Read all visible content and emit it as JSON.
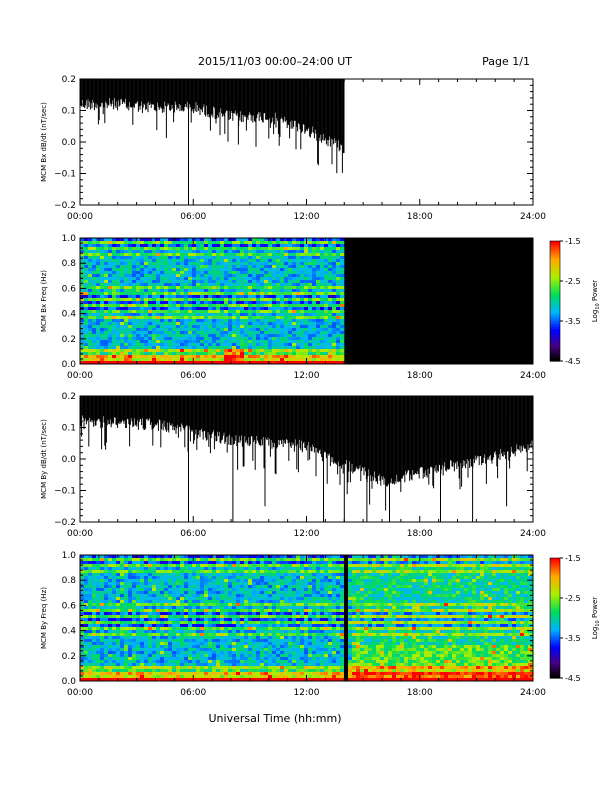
{
  "header": {
    "title": "2015/11/03  00:00–24:00 UT",
    "page": "Page 1/1"
  },
  "footer": {
    "xlabel": "Universal Time (hh:mm)"
  },
  "colorbar": {
    "label_prefix": "Log",
    "label_sub": "10",
    "label_suffix": " Power",
    "ticks": [
      "-1.5",
      "-2.5",
      "-3.5",
      "-4.5"
    ],
    "range": [
      -4.5,
      -1.5
    ]
  },
  "chart_data": [
    {
      "type": "line",
      "id": "bx-dbdt",
      "ylabel": "MCM Bx dB/dt (nT/sec)",
      "x_ticks": [
        "00:00",
        "06:00",
        "12:00",
        "18:00",
        "24:00"
      ],
      "xlim": [
        0,
        24
      ],
      "ylim": [
        -0.2,
        0.2
      ],
      "y_ticks": [
        "0.2",
        "0.1",
        "0.0",
        "−0.1",
        "−0.2"
      ],
      "data_end_hour": 14.0,
      "envelope": [
        {
          "x": 0,
          "top": 0.2,
          "bottom": 0.14
        },
        {
          "x": 2,
          "top": 0.2,
          "bottom": 0.14
        },
        {
          "x": 4,
          "top": 0.2,
          "bottom": 0.13
        },
        {
          "x": 6,
          "top": 0.2,
          "bottom": 0.13
        },
        {
          "x": 8,
          "top": 0.2,
          "bottom": 0.1
        },
        {
          "x": 10,
          "top": 0.2,
          "bottom": 0.1
        },
        {
          "x": 12,
          "top": 0.2,
          "bottom": 0.06
        },
        {
          "x": 14,
          "top": 0.2,
          "bottom": 0.0
        }
      ],
      "spikes": [
        {
          "x": 5.75,
          "y": -0.2
        },
        {
          "x": 7.9,
          "y": 0.07
        },
        {
          "x": 8.4,
          "y": 0.05
        },
        {
          "x": 12.0,
          "y": 0.04
        },
        {
          "x": 13.9,
          "y": 0.0
        }
      ]
    },
    {
      "type": "heatmap",
      "id": "bx-spectrogram",
      "ylabel": "MCM Bx Freq (Hz)",
      "x_ticks": [
        "00:00",
        "06:00",
        "12:00",
        "18:00",
        "24:00"
      ],
      "xlim": [
        0,
        24
      ],
      "ylim": [
        0,
        1.0
      ],
      "y_ticks": [
        "1.0",
        "0.8",
        "0.6",
        "0.4",
        "0.2",
        "0.0"
      ],
      "data_end_hour": 14.0,
      "colorscale": "rainbow",
      "value_range": [
        -4.5,
        -1.5
      ]
    },
    {
      "type": "line",
      "id": "by-dbdt",
      "ylabel": "MCM By dB/dt (nT/sec)",
      "x_ticks": [
        "00:00",
        "06:00",
        "12:00",
        "18:00",
        "24:00"
      ],
      "xlim": [
        0,
        24
      ],
      "ylim": [
        -0.2,
        0.2
      ],
      "y_ticks": [
        "0.2",
        "0.1",
        "0.0",
        "−0.1",
        "−0.2"
      ],
      "data_end_hour": 24.0,
      "envelope": [
        {
          "x": 0,
          "top": 0.2,
          "bottom": 0.14
        },
        {
          "x": 4,
          "top": 0.2,
          "bottom": 0.13
        },
        {
          "x": 8,
          "top": 0.2,
          "bottom": 0.08
        },
        {
          "x": 12,
          "top": 0.2,
          "bottom": 0.06
        },
        {
          "x": 16,
          "top": 0.2,
          "bottom": -0.05
        },
        {
          "x": 20,
          "top": 0.2,
          "bottom": 0.0
        },
        {
          "x": 24,
          "top": 0.2,
          "bottom": 0.06
        }
      ],
      "spikes": [
        {
          "x": 5.75,
          "y": -0.2
        },
        {
          "x": 8.1,
          "y": -0.2
        },
        {
          "x": 9.8,
          "y": -0.15
        },
        {
          "x": 12.9,
          "y": -0.2
        },
        {
          "x": 14.0,
          "y": -0.2
        },
        {
          "x": 15.2,
          "y": -0.2
        },
        {
          "x": 16.4,
          "y": -0.2
        },
        {
          "x": 19.1,
          "y": -0.2
        },
        {
          "x": 20.8,
          "y": -0.2
        },
        {
          "x": 22.6,
          "y": -0.15
        }
      ]
    },
    {
      "type": "heatmap",
      "id": "by-spectrogram",
      "ylabel": "MCM By Freq (Hz)",
      "x_ticks": [
        "00:00",
        "06:00",
        "12:00",
        "18:00",
        "24:00"
      ],
      "xlim": [
        0,
        24
      ],
      "ylim": [
        0,
        1.0
      ],
      "y_ticks": [
        "1.0",
        "0.8",
        "0.6",
        "0.4",
        "0.2",
        "0.0"
      ],
      "data_end_hour": 24.0,
      "gap_hour": 14.0,
      "colorscale": "rainbow",
      "value_range": [
        -4.5,
        -1.5
      ]
    }
  ]
}
